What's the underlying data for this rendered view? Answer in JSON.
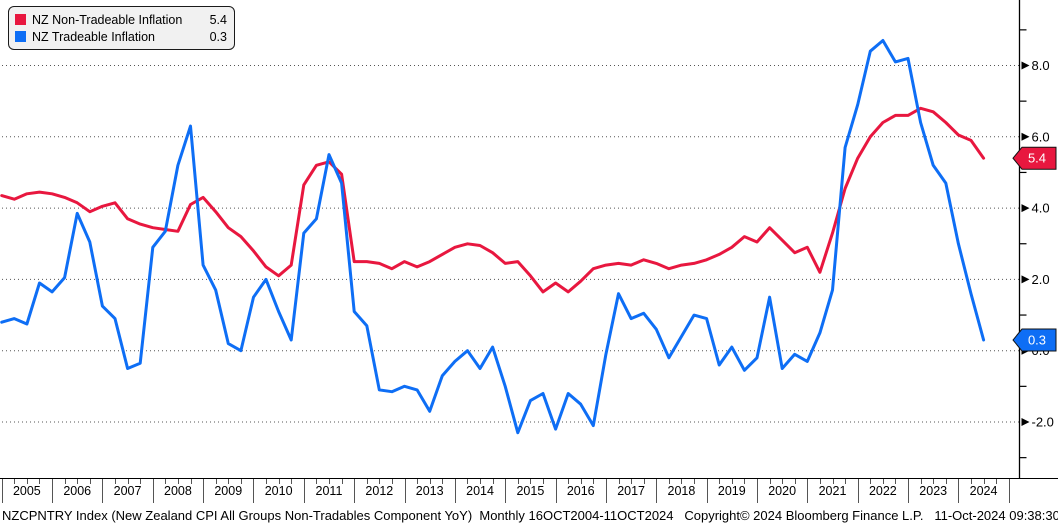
{
  "legend": {
    "items": [
      {
        "label": "NZ Non-Tradeable Inflation",
        "value": "5.4",
        "color": "#e8173f"
      },
      {
        "label": "NZ Tradeable Inflation",
        "value": "0.3",
        "color": "#0e6ef5"
      }
    ]
  },
  "axis": {
    "y_major": [
      {
        "value": 8,
        "label": "8.0"
      },
      {
        "value": 6,
        "label": "6.0"
      },
      {
        "value": 4,
        "label": "4.0"
      },
      {
        "value": 2,
        "label": "2.0"
      },
      {
        "value": 0,
        "label": "0.0"
      },
      {
        "value": -2,
        "label": "-2.0"
      }
    ],
    "y_minor": [
      9,
      7,
      5,
      3,
      1,
      -1,
      -3
    ],
    "years": [
      "2005",
      "2006",
      "2007",
      "2008",
      "2009",
      "2010",
      "2011",
      "2012",
      "2013",
      "2014",
      "2015",
      "2016",
      "2017",
      "2018",
      "2019",
      "2020",
      "2021",
      "2022",
      "2023",
      "2024"
    ]
  },
  "badges": [
    {
      "text": "5.4",
      "value": 5.4,
      "color": "#e8173f"
    },
    {
      "text": "0.3",
      "value": 0.3,
      "color": "#0e6ef5"
    }
  ],
  "footer": {
    "text": "NZCPNTRY Index (New Zealand CPI All Groups Non-Tradables Component YoY)  Monthly 16OCT2004-11OCT2024   Copyright© 2024 Bloomberg Finance L.P.   11-Oct-2024 09:38:30"
  },
  "chart_data": {
    "type": "line",
    "frequency": "quarterly",
    "x_start": "2004Q4",
    "x_end": "2024Q2",
    "x_year_labels": [
      "2005",
      "2006",
      "2007",
      "2008",
      "2009",
      "2010",
      "2011",
      "2012",
      "2013",
      "2014",
      "2015",
      "2016",
      "2017",
      "2018",
      "2019",
      "2020",
      "2021",
      "2022",
      "2023",
      "2024"
    ],
    "ylim": [
      -3.6,
      9.9
    ],
    "grid": "horizontal-dotted",
    "legend_position": "top-left",
    "series": [
      {
        "name": "NZ Non-Tradeable Inflation",
        "color": "#e8173f",
        "last_value": 5.4,
        "values": [
          4.35,
          4.25,
          4.4,
          4.45,
          4.4,
          4.3,
          4.15,
          3.9,
          4.05,
          4.15,
          3.7,
          3.55,
          3.45,
          3.4,
          3.35,
          4.1,
          4.3,
          3.9,
          3.45,
          3.2,
          2.8,
          2.35,
          2.1,
          2.4,
          4.65,
          5.2,
          5.3,
          4.95,
          2.5,
          2.5,
          2.45,
          2.3,
          2.5,
          2.35,
          2.5,
          2.7,
          2.9,
          3.0,
          2.95,
          2.75,
          2.45,
          2.5,
          2.1,
          1.65,
          1.9,
          1.65,
          1.95,
          2.3,
          2.4,
          2.45,
          2.4,
          2.55,
          2.45,
          2.3,
          2.4,
          2.45,
          2.55,
          2.7,
          2.9,
          3.2,
          3.05,
          3.45,
          3.1,
          2.75,
          2.9,
          2.2,
          3.3,
          4.55,
          5.4,
          6.0,
          6.4,
          6.6,
          6.6,
          6.8,
          6.7,
          6.4,
          6.05,
          5.9,
          5.4
        ]
      },
      {
        "name": "NZ Tradeable Inflation",
        "color": "#0e6ef5",
        "last_value": 0.3,
        "values": [
          0.8,
          0.9,
          0.75,
          1.9,
          1.65,
          2.05,
          3.85,
          3.05,
          1.25,
          0.9,
          -0.5,
          -0.35,
          2.9,
          3.35,
          5.2,
          6.3,
          2.4,
          1.7,
          0.2,
          0.0,
          1.5,
          2.0,
          1.1,
          0.3,
          3.3,
          3.7,
          5.5,
          4.7,
          1.1,
          0.7,
          -1.1,
          -1.15,
          -1.0,
          -1.1,
          -1.7,
          -0.7,
          -0.3,
          0.0,
          -0.5,
          0.1,
          -1.0,
          -2.3,
          -1.4,
          -1.2,
          -2.2,
          -1.2,
          -1.5,
          -2.1,
          -0.1,
          1.6,
          0.9,
          1.05,
          0.6,
          -0.2,
          0.4,
          1.0,
          0.9,
          -0.4,
          0.1,
          -0.55,
          -0.2,
          1.5,
          -0.5,
          -0.1,
          -0.3,
          0.5,
          1.7,
          5.7,
          6.9,
          8.4,
          8.7,
          8.1,
          8.2,
          6.4,
          5.2,
          4.7,
          3.0,
          1.6,
          0.3
        ]
      }
    ]
  }
}
